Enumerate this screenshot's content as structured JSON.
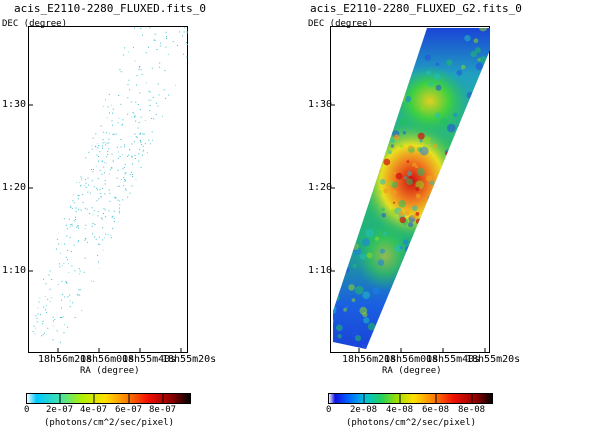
{
  "left_panel": {
    "title": "acis_E2110-2280_FLUXED.fits_0",
    "y_axis_label": "DEC (degree)",
    "x_axis_label": "RA (degree)",
    "y_ticks": [
      "1:30",
      "1:20",
      "1:10"
    ],
    "x_ticks": [
      "18h56m20s",
      "18h56m00s",
      "18h55m40s",
      "18h55m20s"
    ],
    "colorbar": {
      "ticks": [
        "0",
        "2e-07",
        "4e-07",
        "6e-07",
        "8e-07"
      ],
      "unit": "(photons/cm^2/sec/pixel)"
    }
  },
  "right_panel": {
    "title": "acis_E2110-2280_FLUXED_G2.fits_0",
    "y_axis_label": "DEC (degree)",
    "x_axis_label": "RA (degree)",
    "y_ticks": [
      "1:30",
      "1:20",
      "1:10"
    ],
    "x_ticks": [
      "18h56m20s",
      "18h56m00s",
      "18h55m40s",
      "18h55m20s"
    ],
    "colorbar": {
      "ticks": [
        "0",
        "2e-08",
        "4e-08",
        "6e-08",
        "8e-08"
      ],
      "unit": "(photons/cm^2/sec/pixel)"
    }
  },
  "colors": {
    "scatter_points": "#3cbfd0",
    "strip_low": "#2050e0",
    "strip_mid": "#20c060",
    "strip_high": "#f0a020",
    "strip_peak": "#d01010"
  }
}
